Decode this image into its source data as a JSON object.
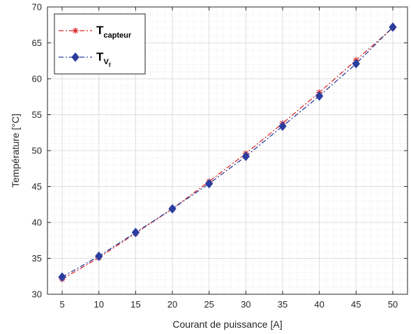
{
  "chart_data": {
    "type": "line",
    "title": "",
    "xlabel": "Courant de puissance [A]",
    "ylabel": "Température [°C]",
    "xlim": [
      3,
      52
    ],
    "ylim": [
      30,
      70
    ],
    "xticks": [
      5,
      10,
      15,
      20,
      25,
      30,
      35,
      40,
      45,
      50
    ],
    "yticks": [
      30,
      35,
      40,
      45,
      50,
      55,
      60,
      65,
      70
    ],
    "grid": true,
    "minor_grid": true,
    "legend_position": "top-left",
    "x": [
      5,
      10,
      15,
      20,
      25,
      30,
      35,
      40,
      45,
      50
    ],
    "series": [
      {
        "name_main": "T",
        "name_sub": "capteur",
        "color": "#d62728",
        "line_style": "dash-dot",
        "marker": "asterisk",
        "values": [
          32.1,
          35.1,
          38.5,
          41.9,
          45.7,
          49.6,
          53.8,
          58.1,
          62.6,
          67.1
        ]
      },
      {
        "name_main": "T",
        "name_sub": "V",
        "name_subsub": "f",
        "color": "#2b3d9e",
        "line_style": "dash-dot",
        "marker": "diamond",
        "values": [
          32.4,
          35.3,
          38.6,
          41.9,
          45.4,
          49.2,
          53.4,
          57.6,
          62.1,
          67.2
        ]
      }
    ]
  }
}
